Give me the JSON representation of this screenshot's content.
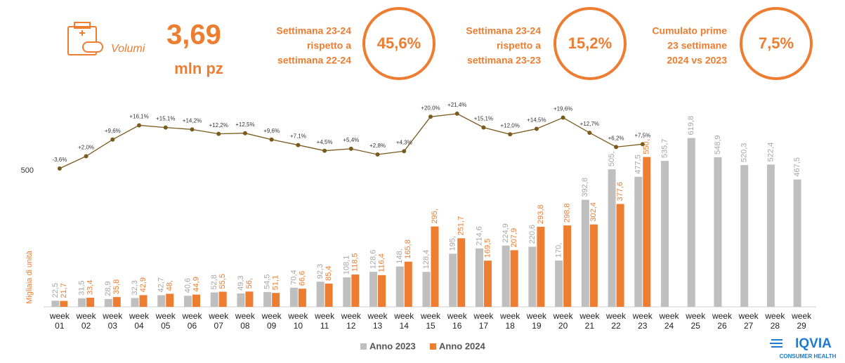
{
  "header": {
    "icon_label": "Volumi",
    "value": "3,69",
    "unit": "mln pz",
    "kpis": [
      {
        "lines": [
          "Settimana 23-24",
          "rispetto a",
          "settimana 22-24"
        ],
        "value": "45,6%"
      },
      {
        "lines": [
          "Settimana 23-24",
          "rispetto a",
          "settimana 23-23"
        ],
        "value": "15,2%"
      },
      {
        "lines": [
          "Cumulato prime",
          "23 settimane",
          "2024 vs 2023"
        ],
        "value": "7,5%"
      }
    ]
  },
  "chart_data": {
    "type": "bar",
    "y_label": "Migliaia di unità",
    "categories": [
      "week 01",
      "week 02",
      "week 03",
      "week 04",
      "week 05",
      "week 06",
      "week 07",
      "week 08",
      "week 09",
      "week 10",
      "week 11",
      "week 12",
      "week 13",
      "week 14",
      "week 15",
      "week 16",
      "week 17",
      "week 18",
      "week 19",
      "week 20",
      "week 21",
      "week 22",
      "week 23",
      "week 24",
      "week 25",
      "week 26",
      "week 27",
      "week 28",
      "week 29"
    ],
    "ylim": [
      0,
      750
    ],
    "yticks": [
      500
    ],
    "y2lim": [
      -66.7,
      26.5
    ],
    "series": [
      {
        "name": "Anno 2023",
        "color": "#bfbfbf",
        "values": [
          22.5,
          31.5,
          28.9,
          32.3,
          42.7,
          40.6,
          52.8,
          49.3,
          54.5,
          70.4,
          92.3,
          108.1,
          128.6,
          148,
          128.4,
          195,
          214.6,
          224.9,
          220.6,
          170,
          392.8,
          505,
          477.5,
          535.7,
          619.8,
          548.9,
          520.3,
          522.4,
          467.5
        ],
        "value_labels": [
          "22,5",
          "31,5",
          "28,9",
          "32,3",
          "42,7",
          "40,6",
          "52,8",
          "49,3",
          "54,5",
          "70,4",
          "92,3",
          "108,1",
          "128,6",
          "148,",
          "128,4",
          "195,",
          "214,6",
          "224,9",
          "220,6",
          "170,",
          "392,8",
          "505,",
          "477,5",
          "535,7",
          "619,8",
          "548,9",
          "520,3",
          "522,4",
          "467,5"
        ]
      },
      {
        "name": "Anno 2024",
        "color": "#ed7d31",
        "values": [
          21.7,
          33.4,
          35.8,
          42.9,
          48,
          44.9,
          55.5,
          56,
          51.1,
          66.6,
          85.4,
          118.5,
          116.4,
          165.8,
          295,
          251.7,
          169.5,
          207.9,
          293.8,
          298.8,
          302.4,
          377.6,
          550,
          null,
          null,
          null,
          null,
          null,
          null
        ],
        "value_labels": [
          "21,7",
          "33,4",
          "35,8",
          "42,9",
          "48,",
          "44,9",
          "55,5",
          "56,",
          "51,1",
          "66,6",
          "85,4",
          "118,5",
          "116,4",
          "165,8",
          "295,",
          "251,7",
          "169,5",
          "207,9",
          "293,8",
          "298,8",
          "302,4",
          "377,6",
          "550,",
          null,
          null,
          null,
          null,
          null,
          null
        ]
      },
      {
        "type": "line",
        "axis": "y2",
        "color": "#7b5a1e",
        "values": [
          -3.6,
          2.0,
          9.6,
          16.1,
          15.1,
          14.2,
          12.2,
          12.5,
          9.6,
          7.1,
          4.5,
          5.4,
          2.8,
          4.3,
          20.0,
          21.4,
          15.1,
          12.0,
          14.5,
          19.6,
          12.7,
          6.2,
          7.5,
          null,
          null,
          null,
          null,
          null,
          null
        ],
        "value_labels": [
          "-3,6%",
          "+2,0%",
          "+9,6%",
          "+16,1%",
          "+15,1%",
          "+14,2%",
          "+12,2%",
          "+12,5%",
          "+9,6%",
          "+7,1%",
          "+4,5%",
          "+5,4%",
          "+2,8%",
          "+4,3%",
          "+20,0%",
          "+21,4%",
          "+15,1%",
          "+12,0%",
          "+14,5%",
          "+19,6%",
          "+12,7%",
          "+6,2%",
          "+7,5%",
          null,
          null,
          null,
          null,
          null,
          null
        ]
      }
    ]
  },
  "logo": {
    "name": "IQVIA",
    "subtitle": "CONSUMER HEALTH"
  }
}
